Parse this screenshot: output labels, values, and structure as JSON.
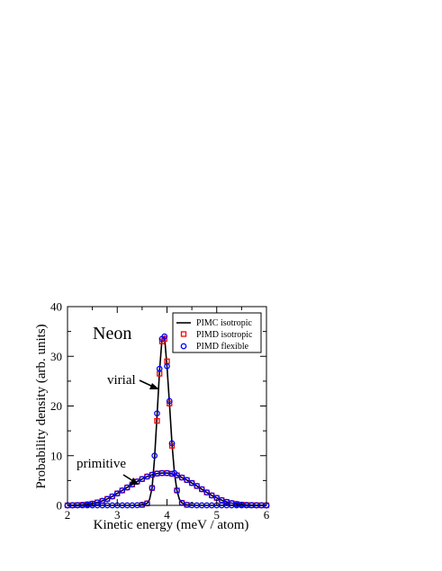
{
  "chart_data": {
    "type": "line",
    "title": "Neon",
    "xlabel": "Kinetic  energy  (meV / atom)",
    "ylabel": "Probability  density  (arb. units)",
    "xlim": [
      2,
      6
    ],
    "ylim": [
      0,
      40
    ],
    "xticks": [
      2,
      3,
      4,
      5,
      6
    ],
    "yticks": [
      0,
      10,
      20,
      30,
      40
    ],
    "grid": false,
    "legend_position": "top-right",
    "legend": [
      "PIMC isotropic",
      "PIMD isotropic",
      "PIMD flexible"
    ],
    "annotations": [
      {
        "text": "virial",
        "points_to": [
          3.93,
          23
        ]
      },
      {
        "text": "primitive",
        "points_to": [
          3.3,
          3.7
        ]
      }
    ],
    "colors": {
      "pimc": "#000000",
      "pimd_isotropic": "#ff0000",
      "pimd_flexible": "#0000ff"
    },
    "series": [
      {
        "name": "PIMC isotropic",
        "estimator": "primitive",
        "style": "line",
        "x": [
          2.0,
          2.1,
          2.2,
          2.3,
          2.4,
          2.5,
          2.6,
          2.7,
          2.8,
          2.9,
          3.0,
          3.1,
          3.2,
          3.3,
          3.4,
          3.5,
          3.6,
          3.7,
          3.8,
          3.9,
          4.0,
          4.1,
          4.2,
          4.3,
          4.4,
          4.5,
          4.6,
          4.7,
          4.8,
          4.9,
          5.0,
          5.1,
          5.2,
          5.3,
          5.4,
          5.5,
          5.6,
          5.7,
          5.8,
          5.9,
          6.0
        ],
        "y": [
          0.0,
          0.02,
          0.05,
          0.1,
          0.2,
          0.35,
          0.6,
          0.9,
          1.3,
          1.8,
          2.4,
          3.0,
          3.6,
          4.2,
          4.8,
          5.3,
          5.8,
          6.15,
          6.4,
          6.5,
          6.5,
          6.35,
          6.05,
          5.6,
          5.1,
          4.5,
          3.9,
          3.25,
          2.6,
          2.0,
          1.5,
          1.05,
          0.7,
          0.45,
          0.27,
          0.15,
          0.08,
          0.04,
          0.02,
          0.01,
          0.0
        ]
      },
      {
        "name": "PIMC isotropic",
        "estimator": "virial",
        "style": "line",
        "x": [
          2.0,
          2.2,
          2.4,
          2.6,
          2.8,
          3.0,
          3.2,
          3.4,
          3.5,
          3.6,
          3.65,
          3.7,
          3.75,
          3.8,
          3.85,
          3.9,
          3.95,
          4.0,
          4.05,
          4.1,
          4.15,
          4.2,
          4.25,
          4.3,
          4.35,
          4.4,
          4.5,
          4.6,
          4.8,
          5.0,
          5.2,
          5.4,
          5.6,
          5.8,
          6.0
        ],
        "y": [
          0.0,
          0.0,
          0.0,
          0.0,
          0.0,
          0.0,
          0.0,
          0.02,
          0.1,
          0.4,
          1.2,
          3.5,
          9.5,
          18.0,
          27.0,
          33.5,
          34.0,
          28.0,
          20.5,
          12.5,
          6.5,
          3.0,
          1.2,
          0.5,
          0.2,
          0.1,
          0.02,
          0.0,
          0.0,
          0.0,
          0.0,
          0.0,
          0.0,
          0.0,
          0.0
        ]
      },
      {
        "name": "PIMD isotropic",
        "estimator": "primitive",
        "style": "square-markers",
        "x": [
          2.0,
          2.1,
          2.2,
          2.3,
          2.4,
          2.5,
          2.6,
          2.7,
          2.8,
          2.9,
          3.0,
          3.1,
          3.2,
          3.3,
          3.4,
          3.5,
          3.6,
          3.7,
          3.8,
          3.9,
          4.0,
          4.1,
          4.2,
          4.3,
          4.4,
          4.5,
          4.6,
          4.7,
          4.8,
          4.9,
          5.0,
          5.1,
          5.2,
          5.3,
          5.4,
          5.5,
          5.6,
          5.7,
          5.8,
          5.9,
          6.0
        ],
        "y": [
          0.0,
          0.02,
          0.05,
          0.1,
          0.2,
          0.35,
          0.6,
          0.9,
          1.3,
          1.8,
          2.4,
          3.0,
          3.6,
          4.2,
          4.8,
          5.3,
          5.8,
          6.15,
          6.4,
          6.5,
          6.5,
          6.35,
          6.05,
          5.6,
          5.1,
          4.5,
          3.9,
          3.25,
          2.6,
          2.0,
          1.5,
          1.05,
          0.7,
          0.45,
          0.27,
          0.15,
          0.08,
          0.04,
          0.02,
          0.01,
          0.0
        ]
      },
      {
        "name": "PIMD isotropic",
        "estimator": "virial",
        "style": "square-markers",
        "x": [
          3.5,
          3.6,
          3.7,
          3.8,
          3.85,
          3.9,
          3.95,
          4.0,
          4.05,
          4.1,
          4.2,
          4.3,
          4.4
        ],
        "y": [
          0.1,
          0.4,
          3.5,
          17.0,
          26.5,
          33.0,
          33.5,
          29.0,
          20.5,
          12.0,
          3.0,
          0.5,
          0.1
        ]
      },
      {
        "name": "PIMD flexible",
        "estimator": "primitive",
        "style": "circle-markers",
        "x": [
          2.0,
          2.1,
          2.2,
          2.3,
          2.4,
          2.5,
          2.6,
          2.7,
          2.8,
          2.9,
          3.0,
          3.1,
          3.2,
          3.3,
          3.4,
          3.5,
          3.6,
          3.7,
          3.8,
          3.9,
          4.0,
          4.1,
          4.2,
          4.3,
          4.4,
          4.5,
          4.6,
          4.7,
          4.8,
          4.9,
          5.0,
          5.1,
          5.2,
          5.3,
          5.4,
          5.5,
          5.6,
          5.7,
          5.8,
          5.9,
          6.0
        ],
        "y": [
          0.0,
          0.02,
          0.05,
          0.1,
          0.2,
          0.35,
          0.6,
          0.9,
          1.3,
          1.8,
          2.4,
          3.0,
          3.6,
          4.2,
          4.8,
          5.3,
          5.8,
          6.15,
          6.4,
          6.5,
          6.5,
          6.35,
          6.05,
          5.6,
          5.1,
          4.5,
          3.9,
          3.25,
          2.6,
          2.0,
          1.5,
          1.05,
          0.7,
          0.45,
          0.27,
          0.15,
          0.08,
          0.04,
          0.02,
          0.01,
          0.0
        ]
      },
      {
        "name": "PIMD flexible",
        "estimator": "virial",
        "style": "circle-markers",
        "x": [
          2.0,
          2.1,
          2.2,
          2.3,
          2.4,
          2.5,
          2.6,
          2.7,
          2.8,
          2.9,
          3.0,
          3.1,
          3.2,
          3.3,
          3.4,
          3.5,
          3.6,
          3.7,
          3.75,
          3.8,
          3.85,
          3.9,
          3.95,
          4.0,
          4.05,
          4.1,
          4.15,
          4.2,
          4.3,
          4.4,
          4.5,
          4.6,
          4.7,
          4.8,
          4.9,
          5.0,
          5.1,
          5.2,
          5.3,
          5.4,
          5.5,
          5.6,
          5.7,
          5.8,
          5.9,
          6.0
        ],
        "y": [
          0.0,
          0.0,
          0.0,
          0.0,
          0.0,
          0.0,
          0.0,
          0.0,
          0.0,
          0.0,
          0.0,
          0.0,
          0.0,
          0.0,
          0.02,
          0.1,
          0.4,
          3.5,
          10.0,
          18.5,
          27.5,
          33.5,
          34.0,
          28.0,
          21.0,
          12.5,
          6.5,
          3.0,
          0.5,
          0.1,
          0.02,
          0.0,
          0.0,
          0.0,
          0.0,
          0.0,
          0.0,
          0.0,
          0.0,
          0.0,
          0.0,
          0.0,
          0.0,
          0.0,
          0.0,
          0.0
        ]
      }
    ]
  }
}
